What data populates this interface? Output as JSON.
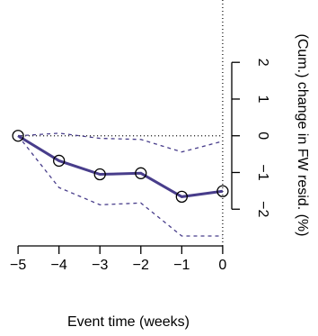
{
  "chart_data": {
    "type": "line",
    "x_label": "Event time (weeks)",
    "y_label": "(Cum.) change in FW resid. (%)",
    "x": [
      -5,
      -4,
      -3,
      -2,
      -1,
      0
    ],
    "series": [
      {
        "color": "#483d8b",
        "style": "solid",
        "markers": true,
        "values": [
          0,
          -0.68,
          -1.05,
          -1.02,
          -1.66,
          -1.51
        ]
      },
      {
        "color": "#483d8b",
        "style": "dashed",
        "markers": false,
        "values": [
          0,
          0.07,
          -0.07,
          -0.1,
          -0.44,
          -0.15
        ]
      },
      {
        "color": "#483d8b",
        "style": "dashed",
        "markers": false,
        "values": [
          0,
          -1.41,
          -1.88,
          -1.83,
          -2.73,
          -2.73
        ]
      }
    ],
    "xlim": [
      -5.2,
      0.2
    ],
    "ylim": [
      -3,
      3.6
    ],
    "xticks": [
      {
        "value": -5,
        "label": "−5"
      },
      {
        "value": -4,
        "label": "−4"
      },
      {
        "value": -3,
        "label": "−3"
      },
      {
        "value": -2,
        "label": "−2"
      },
      {
        "value": -1,
        "label": "−1"
      },
      0
    ],
    "yticks": [
      {
        "value": -2,
        "label": "−2"
      },
      {
        "value": -1,
        "label": "−1"
      },
      0,
      1,
      2
    ],
    "reference_lines": {
      "x": 0,
      "y": 0
    }
  }
}
